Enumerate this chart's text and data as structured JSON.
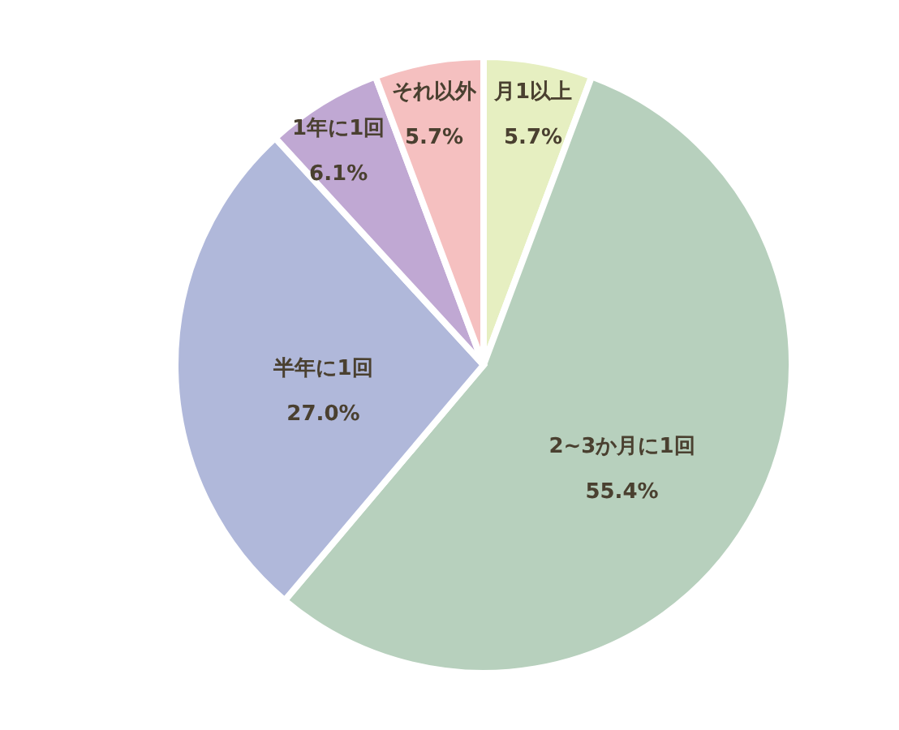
{
  "chart_data": {
    "type": "pie",
    "categories": [
      "月1以上",
      "2~3か月に1回",
      "半年に1回",
      "1年に1回",
      "それ以外"
    ],
    "values": [
      5.7,
      55.4,
      27.0,
      6.1,
      5.7
    ],
    "colors": [
      "#e6efc1",
      "#b7d0bd",
      "#b0b8da",
      "#c0a8d3",
      "#f5c0c0"
    ],
    "value_labels": [
      "5.7%",
      "55.4%",
      "27.0%",
      "6.1%",
      "5.7%"
    ]
  }
}
